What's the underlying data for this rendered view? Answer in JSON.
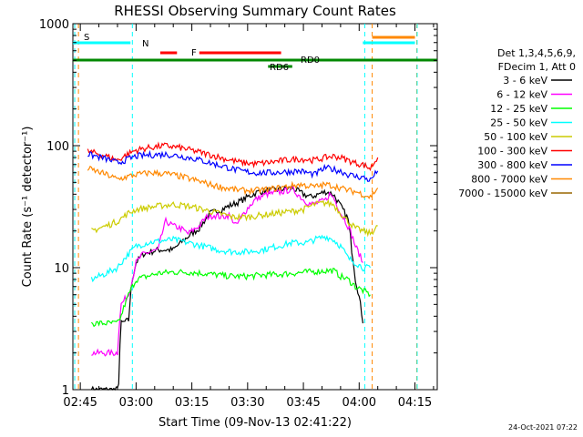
{
  "chart_data": {
    "type": "line",
    "title": "RHESSI Observing Summary Count Rates",
    "xlabel": "Start Time (09-Nov-13 02:41:22)",
    "ylabel": "Count Rate (s⁻¹ detector⁻¹)",
    "y_scale": "log",
    "ylim": [
      1,
      1000
    ],
    "y_ticks": [
      "1",
      "10",
      "100",
      "1000"
    ],
    "xlim_minutes": [
      163,
      261
    ],
    "x_tick_labels": [
      {
        "t": 165,
        "label": "02:45"
      },
      {
        "t": 180,
        "label": "03:00"
      },
      {
        "t": 195,
        "label": "03:15"
      },
      {
        "t": 210,
        "label": "03:30"
      },
      {
        "t": 225,
        "label": "03:45"
      },
      {
        "t": 240,
        "label": "04:00"
      },
      {
        "t": 255,
        "label": "04:15"
      }
    ],
    "legend_header": [
      "Det 1,3,4,5,6,9,",
      "FDecim 1, Att 0"
    ],
    "series": [
      {
        "name": "3 - 6 keV",
        "color": "#000000",
        "points": [
          [
            168,
            0
          ],
          [
            172,
            0
          ],
          [
            175,
            0
          ],
          [
            176,
            3.5
          ],
          [
            178,
            3.7
          ],
          [
            179,
            8
          ],
          [
            180,
            11
          ],
          [
            182,
            13
          ],
          [
            186,
            14
          ],
          [
            190,
            14
          ],
          [
            193,
            17
          ],
          [
            197,
            21
          ],
          [
            200,
            28
          ],
          [
            203,
            30
          ],
          [
            206,
            33
          ],
          [
            208,
            35
          ],
          [
            210,
            38
          ],
          [
            213,
            42
          ],
          [
            216,
            43
          ],
          [
            219,
            44
          ],
          [
            222,
            45
          ],
          [
            225,
            40
          ],
          [
            227,
            38
          ],
          [
            229,
            40
          ],
          [
            231,
            42
          ],
          [
            233,
            40
          ],
          [
            235,
            32
          ],
          [
            237,
            25
          ],
          [
            238,
            14
          ],
          [
            239,
            8
          ],
          [
            241,
            3.5
          ]
        ]
      },
      {
        "name": "6 - 12 keV",
        "color": "#ff00ff",
        "points": [
          [
            168,
            2
          ],
          [
            172,
            2
          ],
          [
            175,
            2
          ],
          [
            176,
            5
          ],
          [
            178,
            6
          ],
          [
            179,
            8
          ],
          [
            180,
            11
          ],
          [
            182,
            13
          ],
          [
            186,
            14
          ],
          [
            188,
            24
          ],
          [
            190,
            22
          ],
          [
            192,
            21
          ],
          [
            194,
            19
          ],
          [
            197,
            22
          ],
          [
            199,
            26
          ],
          [
            201,
            27
          ],
          [
            203,
            26
          ],
          [
            205,
            27
          ],
          [
            207,
            22
          ],
          [
            209,
            28
          ],
          [
            212,
            36
          ],
          [
            215,
            40
          ],
          [
            218,
            41
          ],
          [
            222,
            44
          ],
          [
            225,
            36
          ],
          [
            227,
            33
          ],
          [
            229,
            34
          ],
          [
            231,
            36
          ],
          [
            232,
            40
          ],
          [
            233,
            38
          ],
          [
            235,
            28
          ],
          [
            237,
            22
          ],
          [
            239,
            15
          ],
          [
            241,
            11
          ]
        ]
      },
      {
        "name": "12 - 25 keV",
        "color": "#00ff00",
        "points": [
          [
            168,
            3.5
          ],
          [
            172,
            3.5
          ],
          [
            175,
            3.5
          ],
          [
            176,
            4
          ],
          [
            178,
            6
          ],
          [
            179,
            7
          ],
          [
            180,
            8
          ],
          [
            183,
            8.5
          ],
          [
            186,
            9
          ],
          [
            190,
            9.2
          ],
          [
            194,
            9.2
          ],
          [
            198,
            9
          ],
          [
            202,
            8.7
          ],
          [
            206,
            8.5
          ],
          [
            210,
            8.5
          ],
          [
            214,
            8.7
          ],
          [
            218,
            8.8
          ],
          [
            222,
            9
          ],
          [
            226,
            9.2
          ],
          [
            230,
            9.4
          ],
          [
            233,
            9.5
          ],
          [
            235,
            8.5
          ],
          [
            237,
            8
          ],
          [
            239,
            7
          ],
          [
            241,
            6.5
          ],
          [
            243,
            6
          ]
        ]
      },
      {
        "name": "25 - 50 keV",
        "color": "#00ffff",
        "points": [
          [
            168,
            8
          ],
          [
            172,
            9
          ],
          [
            175,
            10
          ],
          [
            178,
            13
          ],
          [
            180,
            15
          ],
          [
            183,
            16
          ],
          [
            186,
            16.5
          ],
          [
            190,
            17
          ],
          [
            194,
            16
          ],
          [
            198,
            15
          ],
          [
            202,
            14
          ],
          [
            206,
            13.5
          ],
          [
            210,
            13.5
          ],
          [
            214,
            14
          ],
          [
            218,
            15
          ],
          [
            222,
            16
          ],
          [
            226,
            16
          ],
          [
            228,
            17
          ],
          [
            231,
            18
          ],
          [
            233,
            17
          ],
          [
            235,
            15
          ],
          [
            237,
            12
          ],
          [
            239,
            11
          ],
          [
            241,
            10
          ],
          [
            243,
            10
          ]
        ]
      },
      {
        "name": "50 - 100 keV",
        "color": "#cccc00",
        "points": [
          [
            168,
            20
          ],
          [
            172,
            22
          ],
          [
            175,
            24
          ],
          [
            178,
            28
          ],
          [
            180,
            30
          ],
          [
            183,
            31
          ],
          [
            186,
            32
          ],
          [
            190,
            33
          ],
          [
            194,
            32
          ],
          [
            198,
            30
          ],
          [
            202,
            28
          ],
          [
            206,
            26
          ],
          [
            210,
            26
          ],
          [
            214,
            27
          ],
          [
            218,
            28
          ],
          [
            222,
            29
          ],
          [
            225,
            30
          ],
          [
            228,
            33
          ],
          [
            231,
            34
          ],
          [
            233,
            33
          ],
          [
            235,
            28
          ],
          [
            237,
            24
          ],
          [
            239,
            21
          ],
          [
            241,
            20
          ],
          [
            243,
            19
          ],
          [
            245,
            22
          ]
        ]
      },
      {
        "name": "100 - 300 keV",
        "color": "#ff0000",
        "points": [
          [
            167,
            90
          ],
          [
            172,
            82
          ],
          [
            175,
            76
          ],
          [
            178,
            86
          ],
          [
            180,
            92
          ],
          [
            184,
            97
          ],
          [
            188,
            100
          ],
          [
            192,
            96
          ],
          [
            196,
            90
          ],
          [
            200,
            84
          ],
          [
            204,
            78
          ],
          [
            208,
            73
          ],
          [
            212,
            71
          ],
          [
            216,
            73
          ],
          [
            220,
            76
          ],
          [
            224,
            78
          ],
          [
            228,
            76
          ],
          [
            231,
            80
          ],
          [
            233,
            82
          ],
          [
            235,
            80
          ],
          [
            237,
            76
          ],
          [
            239,
            72
          ],
          [
            241,
            70
          ],
          [
            243,
            65
          ],
          [
            245,
            80
          ]
        ]
      },
      {
        "name": "300 - 800 keV",
        "color": "#0000ff",
        "points": [
          [
            167,
            85
          ],
          [
            172,
            78
          ],
          [
            175,
            72
          ],
          [
            178,
            78
          ],
          [
            180,
            82
          ],
          [
            184,
            84
          ],
          [
            188,
            85
          ],
          [
            192,
            82
          ],
          [
            196,
            78
          ],
          [
            200,
            72
          ],
          [
            204,
            67
          ],
          [
            208,
            62
          ],
          [
            212,
            60
          ],
          [
            216,
            60
          ],
          [
            220,
            61
          ],
          [
            224,
            62
          ],
          [
            228,
            58
          ],
          [
            231,
            66
          ],
          [
            233,
            64
          ],
          [
            235,
            62
          ],
          [
            237,
            58
          ],
          [
            239,
            56
          ],
          [
            241,
            55
          ],
          [
            243,
            52
          ],
          [
            245,
            62
          ]
        ]
      },
      {
        "name": "800 - 7000 keV",
        "color": "#ff8800",
        "points": [
          [
            167,
            65
          ],
          [
            172,
            58
          ],
          [
            175,
            53
          ],
          [
            178,
            56
          ],
          [
            180,
            58
          ],
          [
            184,
            60
          ],
          [
            188,
            59
          ],
          [
            192,
            56
          ],
          [
            196,
            52
          ],
          [
            200,
            48
          ],
          [
            204,
            45
          ],
          [
            208,
            43
          ],
          [
            212,
            43
          ],
          [
            216,
            44
          ],
          [
            220,
            46
          ],
          [
            224,
            48
          ],
          [
            228,
            46
          ],
          [
            231,
            48
          ],
          [
            233,
            47
          ],
          [
            235,
            45
          ],
          [
            237,
            43
          ],
          [
            239,
            42
          ],
          [
            241,
            40
          ],
          [
            243,
            38
          ],
          [
            245,
            45
          ]
        ]
      },
      {
        "name": "7000 - 15000 keV",
        "color": "#996600",
        "points": []
      }
    ],
    "annotations": {
      "S": {
        "label": "S",
        "color": "#ff8800"
      },
      "N": {
        "label": "N",
        "color": "#00ffff"
      },
      "F": {
        "label": "F",
        "color": "#ff0000"
      },
      "RD0": {
        "label": "RD0",
        "color": "#008800"
      },
      "RD6": {
        "label": "RD6",
        "color": "#008800"
      }
    },
    "bars": {
      "S_orange": {
        "color": "#ff8800",
        "start": 243.5,
        "end": 255
      },
      "N_cyan": [
        {
          "start": 163,
          "end": 178.5
        },
        {
          "start": 241,
          "end": 255
        }
      ],
      "F_red": [
        {
          "start": 186.5,
          "end": 191
        },
        {
          "start": 197,
          "end": 219
        }
      ],
      "RD0_green": {
        "start": 163,
        "end": 261
      },
      "RD6_green": {
        "start": 215.5,
        "end": 222
      }
    },
    "vlines": [
      {
        "t": 163.5,
        "color": "#00ffff"
      },
      {
        "t": 164.5,
        "color": "#ff8800"
      },
      {
        "t": 179,
        "color": "#00ffff"
      },
      {
        "t": 241.5,
        "color": "#00ffff"
      },
      {
        "t": 243.5,
        "color": "#ff8800"
      },
      {
        "t": 255.5,
        "color": "#ff8800"
      },
      {
        "t": 255.6,
        "color": "#00ffff"
      }
    ]
  },
  "timestamp": "24-Oct-2021 07:22"
}
